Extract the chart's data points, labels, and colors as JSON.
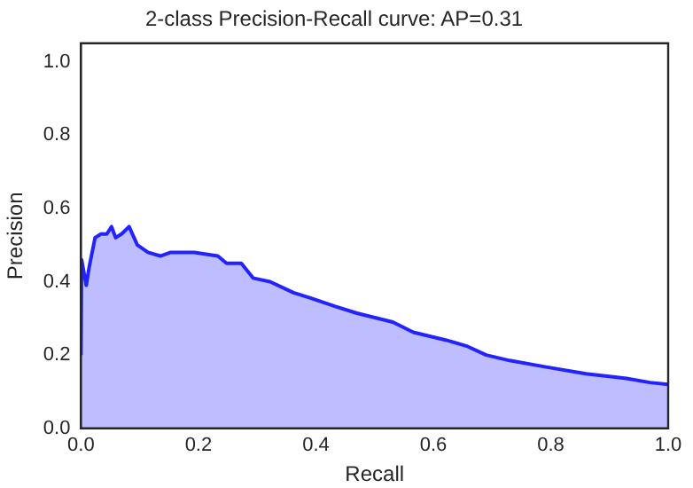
{
  "chart_data": {
    "type": "area",
    "title": "2-class Precision-Recall curve: AP=0.31",
    "xlabel": "Recall",
    "ylabel": "Precision",
    "xlim": [
      0,
      1
    ],
    "ylim": [
      0,
      1.05
    ],
    "xticks": [
      {
        "value": 0,
        "label": "0.0"
      },
      {
        "value": 0.2,
        "label": "0.2"
      },
      {
        "value": 0.4,
        "label": "0.4"
      },
      {
        "value": 0.6,
        "label": "0.6"
      },
      {
        "value": 0.8,
        "label": "0.8"
      },
      {
        "value": 1,
        "label": "1.0"
      }
    ],
    "yticks": [
      {
        "value": 0,
        "label": "0.0"
      },
      {
        "value": 0.2,
        "label": "0.2"
      },
      {
        "value": 0.4,
        "label": "0.4"
      },
      {
        "value": 0.6,
        "label": "0.6"
      },
      {
        "value": 0.8,
        "label": "0.8"
      },
      {
        "value": 1,
        "label": "1.0"
      }
    ],
    "grid": false,
    "legend": false,
    "marker": "none",
    "line_style": "solid",
    "series": [
      {
        "color": "#2323ff",
        "x": [
          0,
          0.001,
          0.009,
          0.014,
          0.024,
          0.034,
          0.044,
          0.052,
          0.059,
          0.069,
          0.082,
          0.096,
          0.114,
          0.135,
          0.153,
          0.193,
          0.233,
          0.248,
          0.273,
          0.293,
          0.322,
          0.362,
          0.392,
          0.432,
          0.47,
          0.531,
          0.566,
          0.621,
          0.656,
          0.69,
          0.73,
          0.79,
          0.86,
          0.929,
          0.969,
          1
        ],
        "values": [
          0.2,
          0.46,
          0.39,
          0.44,
          0.52,
          0.53,
          0.53,
          0.55,
          0.52,
          0.53,
          0.55,
          0.5,
          0.48,
          0.47,
          0.48,
          0.48,
          0.47,
          0.45,
          0.45,
          0.41,
          0.4,
          0.37,
          0.355,
          0.333,
          0.314,
          0.29,
          0.262,
          0.241,
          0.225,
          0.2,
          0.185,
          0.168,
          0.149,
          0.136,
          0.125,
          0.12
        ]
      }
    ]
  }
}
